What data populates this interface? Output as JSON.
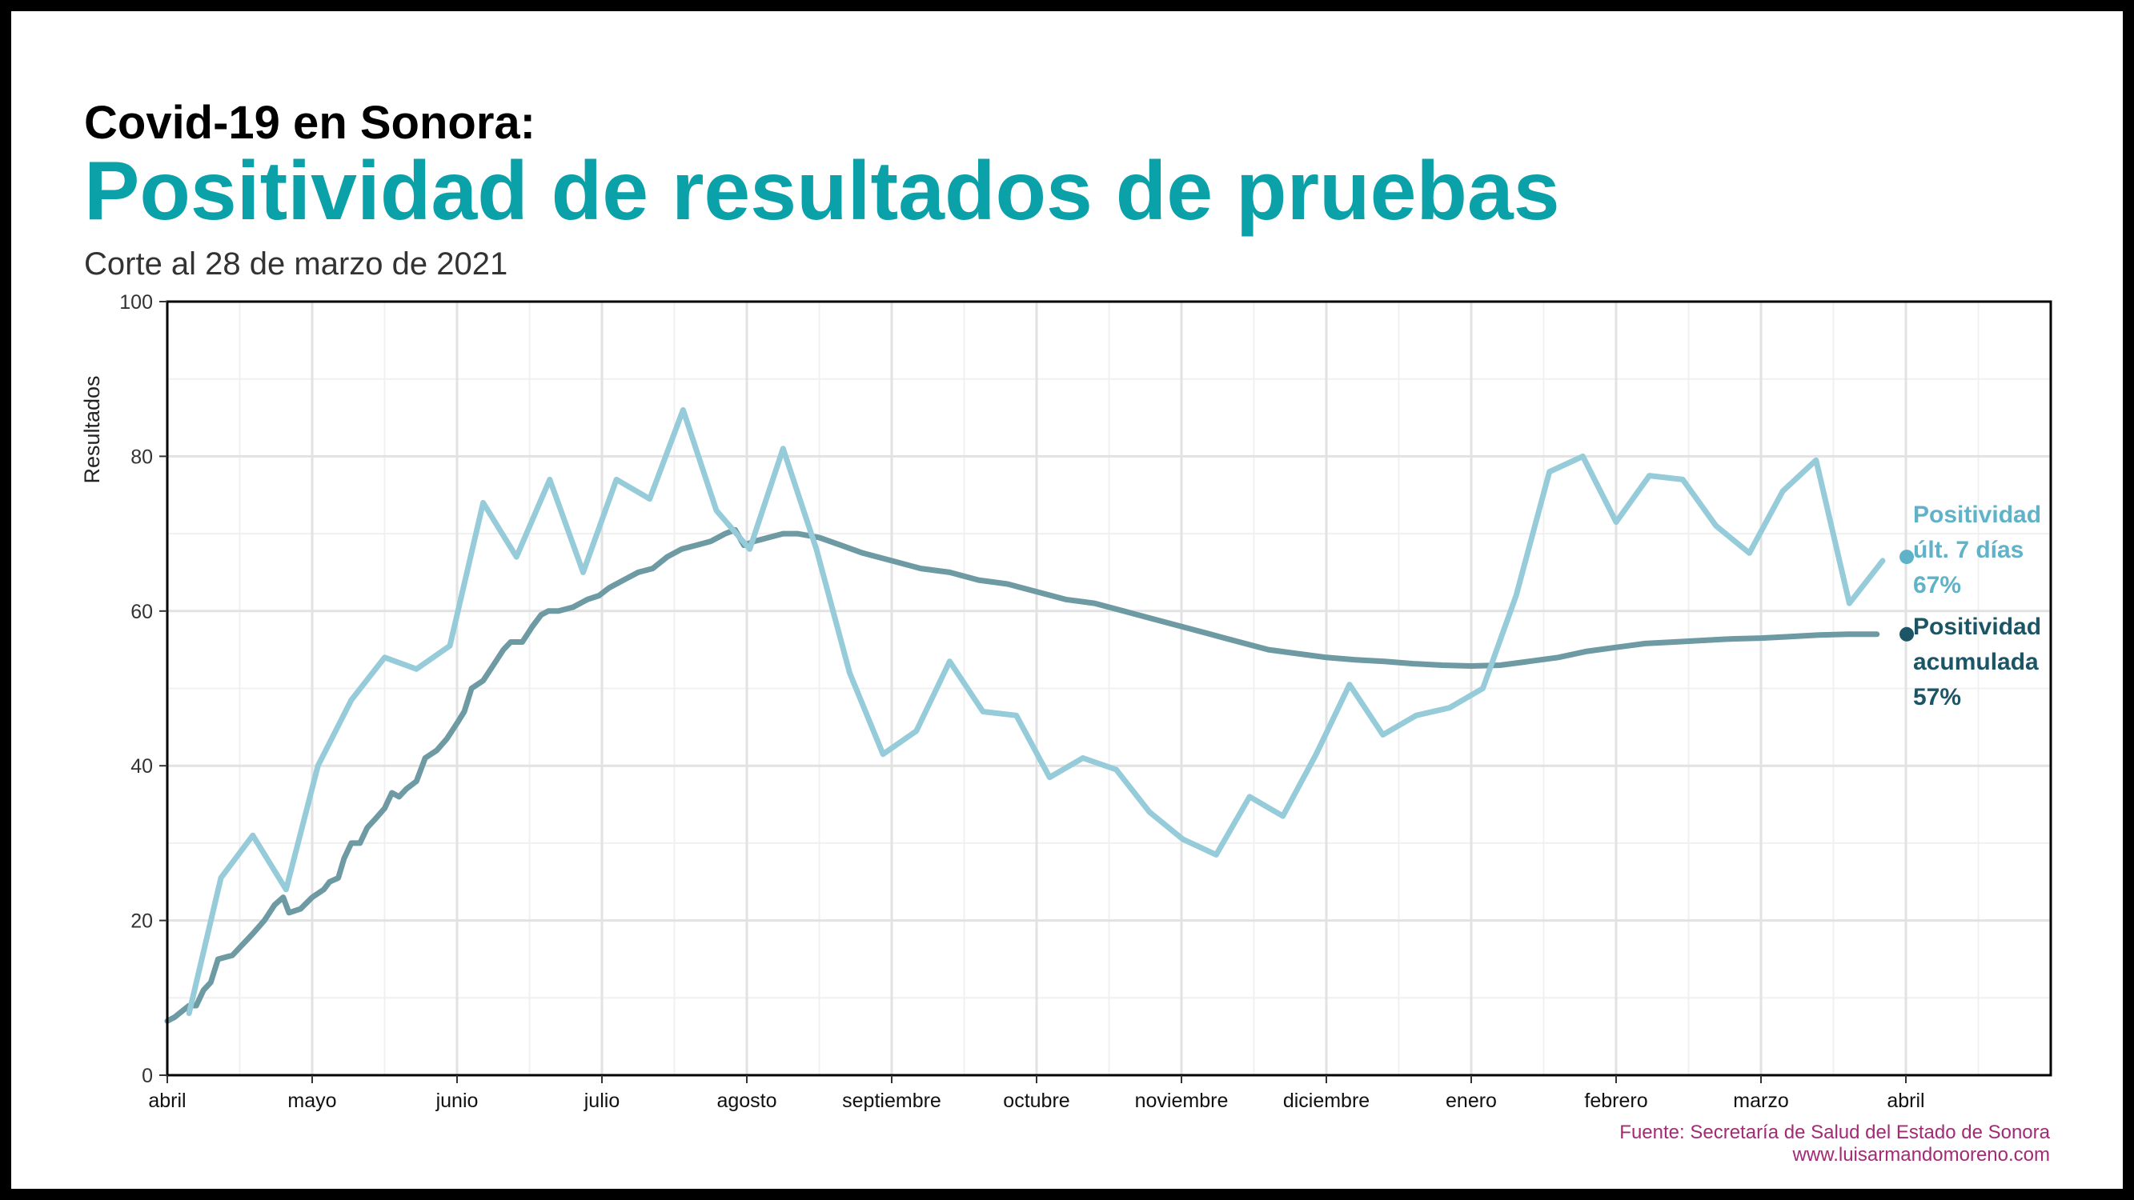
{
  "header": {
    "kicker": "Covid-19 en Sonora:",
    "title": "Positividad de resultados de pruebas",
    "subtitle": "Corte al 28 de marzo de 2021"
  },
  "source": {
    "line1": "Fuente: Secretaría de Salud del Estado de Sonora",
    "line2": "www.luisarmandomoreno.com"
  },
  "colors": {
    "weekly": "#96cbd9",
    "cumulative": "#6e9aa3",
    "weekly_dot": "#5fb2c8",
    "cumulative_dot": "#1c5566",
    "title": "#0aa1a9",
    "source": "#a32a73"
  },
  "chart_data": {
    "type": "line",
    "ylabel": "Resultados",
    "xlabel": "",
    "ylim": [
      0,
      100
    ],
    "yticks": [
      0,
      20,
      40,
      60,
      80,
      100
    ],
    "x_range": [
      0,
      13
    ],
    "xticks": [
      {
        "x": 0,
        "label": "abril"
      },
      {
        "x": 1,
        "label": "mayo"
      },
      {
        "x": 2,
        "label": "junio"
      },
      {
        "x": 3,
        "label": "julio"
      },
      {
        "x": 4,
        "label": "agosto"
      },
      {
        "x": 5,
        "label": "septiembre"
      },
      {
        "x": 6,
        "label": "octubre"
      },
      {
        "x": 7,
        "label": "noviembre"
      },
      {
        "x": 8,
        "label": "diciembre"
      },
      {
        "x": 9,
        "label": "enero"
      },
      {
        "x": 10,
        "label": "febrero"
      },
      {
        "x": 11,
        "label": "marzo"
      },
      {
        "x": 12,
        "label": "abril"
      }
    ],
    "grid": true,
    "series": [
      {
        "key": "weekly",
        "label_lines": [
          "Positividad",
          "últ. 7 días",
          "67%"
        ],
        "points": [
          [
            0.15,
            8
          ],
          [
            0.37,
            25.5
          ],
          [
            0.59,
            31
          ],
          [
            0.82,
            24
          ],
          [
            1.04,
            40
          ],
          [
            1.27,
            48.5
          ],
          [
            1.5,
            54
          ],
          [
            1.72,
            52.5
          ],
          [
            1.95,
            55.5
          ],
          [
            2.18,
            74
          ],
          [
            2.41,
            67
          ],
          [
            2.64,
            77
          ],
          [
            2.87,
            65
          ],
          [
            3.1,
            77
          ],
          [
            3.33,
            74.5
          ],
          [
            3.56,
            86
          ],
          [
            3.79,
            73
          ],
          [
            4.02,
            68
          ],
          [
            4.25,
            81
          ],
          [
            4.48,
            68
          ],
          [
            4.71,
            52
          ],
          [
            4.94,
            41.5
          ],
          [
            5.17,
            44.5
          ],
          [
            5.4,
            53.5
          ],
          [
            5.63,
            47
          ],
          [
            5.86,
            46.5
          ],
          [
            6.09,
            38.5
          ],
          [
            6.32,
            41
          ],
          [
            6.55,
            39.5
          ],
          [
            6.78,
            34
          ],
          [
            7.01,
            30.5
          ],
          [
            7.24,
            28.5
          ],
          [
            7.47,
            36
          ],
          [
            7.7,
            33.5
          ],
          [
            7.93,
            41.5
          ],
          [
            8.16,
            50.5
          ],
          [
            8.39,
            44
          ],
          [
            8.62,
            46.5
          ],
          [
            8.85,
            47.5
          ],
          [
            9.08,
            50
          ],
          [
            9.31,
            62
          ],
          [
            9.54,
            78
          ],
          [
            9.77,
            80
          ],
          [
            10.0,
            71.5
          ],
          [
            10.23,
            77.5
          ],
          [
            10.46,
            77
          ],
          [
            10.69,
            71
          ],
          [
            10.92,
            67.5
          ],
          [
            11.15,
            75.5
          ],
          [
            11.38,
            79.5
          ],
          [
            11.61,
            61
          ],
          [
            11.84,
            66.5
          ]
        ],
        "end": [
          11.84,
          67
        ]
      },
      {
        "key": "cumulative",
        "label_lines": [
          "Positividad",
          "acumulada",
          "57%"
        ],
        "points": [
          [
            0.0,
            7
          ],
          [
            0.05,
            7.5
          ],
          [
            0.15,
            9
          ],
          [
            0.2,
            9
          ],
          [
            0.25,
            11
          ],
          [
            0.3,
            12
          ],
          [
            0.35,
            15
          ],
          [
            0.45,
            15.5
          ],
          [
            0.5,
            16.5
          ],
          [
            0.55,
            17.5
          ],
          [
            0.6,
            18.5
          ],
          [
            0.67,
            20
          ],
          [
            0.74,
            22
          ],
          [
            0.8,
            23
          ],
          [
            0.84,
            21
          ],
          [
            0.92,
            21.5
          ],
          [
            1.0,
            23
          ],
          [
            1.08,
            24
          ],
          [
            1.12,
            25
          ],
          [
            1.18,
            25.5
          ],
          [
            1.22,
            28
          ],
          [
            1.27,
            30
          ],
          [
            1.33,
            30
          ],
          [
            1.38,
            32
          ],
          [
            1.43,
            33
          ],
          [
            1.5,
            34.5
          ],
          [
            1.55,
            36.5
          ],
          [
            1.6,
            36
          ],
          [
            1.65,
            37
          ],
          [
            1.72,
            38
          ],
          [
            1.78,
            41
          ],
          [
            1.86,
            42
          ],
          [
            1.93,
            43.5
          ],
          [
            2.0,
            45.5
          ],
          [
            2.05,
            47
          ],
          [
            2.1,
            50
          ],
          [
            2.18,
            51
          ],
          [
            2.25,
            53
          ],
          [
            2.32,
            55
          ],
          [
            2.37,
            56
          ],
          [
            2.45,
            56
          ],
          [
            2.52,
            58
          ],
          [
            2.58,
            59.5
          ],
          [
            2.63,
            60
          ],
          [
            2.7,
            60
          ],
          [
            2.8,
            60.5
          ],
          [
            2.9,
            61.5
          ],
          [
            2.98,
            62
          ],
          [
            3.05,
            63
          ],
          [
            3.15,
            64
          ],
          [
            3.25,
            65
          ],
          [
            3.35,
            65.5
          ],
          [
            3.45,
            67
          ],
          [
            3.55,
            68
          ],
          [
            3.65,
            68.5
          ],
          [
            3.75,
            69
          ],
          [
            3.85,
            70
          ],
          [
            3.92,
            70.5
          ],
          [
            3.98,
            68.5
          ],
          [
            4.05,
            69
          ],
          [
            4.15,
            69.5
          ],
          [
            4.25,
            70
          ],
          [
            4.35,
            70
          ],
          [
            4.5,
            69.5
          ],
          [
            4.65,
            68.5
          ],
          [
            4.8,
            67.5
          ],
          [
            5.0,
            66.5
          ],
          [
            5.2,
            65.5
          ],
          [
            5.4,
            65
          ],
          [
            5.6,
            64
          ],
          [
            5.8,
            63.5
          ],
          [
            6.0,
            62.5
          ],
          [
            6.2,
            61.5
          ],
          [
            6.4,
            61
          ],
          [
            6.6,
            60
          ],
          [
            6.8,
            59
          ],
          [
            7.0,
            58
          ],
          [
            7.2,
            57
          ],
          [
            7.4,
            56
          ],
          [
            7.6,
            55
          ],
          [
            7.8,
            54.5
          ],
          [
            8.0,
            54
          ],
          [
            8.2,
            53.7
          ],
          [
            8.4,
            53.5
          ],
          [
            8.6,
            53.2
          ],
          [
            8.8,
            53
          ],
          [
            9.0,
            52.9
          ],
          [
            9.2,
            53
          ],
          [
            9.4,
            53.5
          ],
          [
            9.6,
            54
          ],
          [
            9.8,
            54.8
          ],
          [
            10.0,
            55.3
          ],
          [
            10.2,
            55.8
          ],
          [
            10.4,
            56
          ],
          [
            10.6,
            56.2
          ],
          [
            10.8,
            56.4
          ],
          [
            11.0,
            56.5
          ],
          [
            11.2,
            56.7
          ],
          [
            11.4,
            56.9
          ],
          [
            11.6,
            57
          ],
          [
            11.8,
            57
          ]
        ],
        "end": [
          11.84,
          57
        ]
      }
    ]
  }
}
